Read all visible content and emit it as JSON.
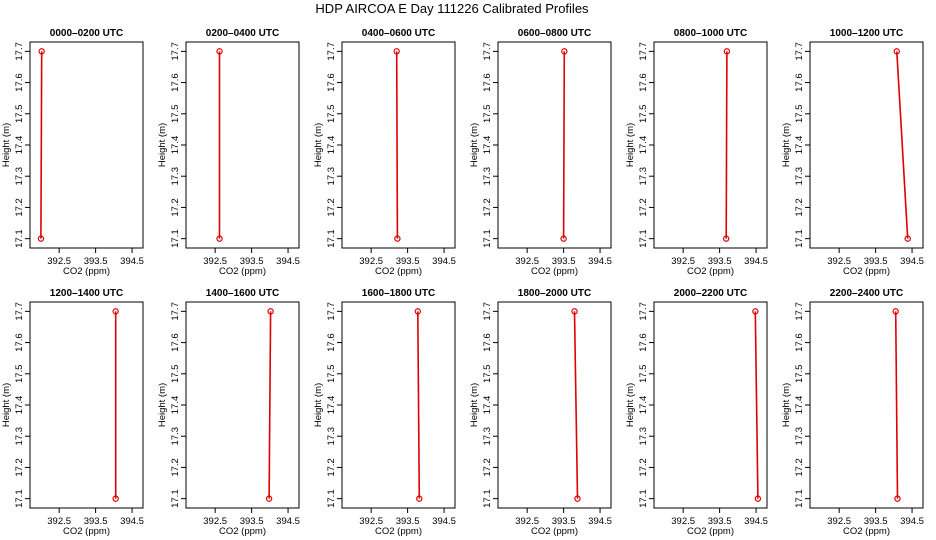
{
  "title": "HDP AIRCOA E  Day 111226  Calibrated Profiles",
  "chart_data": {
    "type": "line",
    "xlabel": "CO2 (ppm)",
    "ylabel": "Height (m)",
    "xlim": [
      391.7,
      394.8
    ],
    "ylim": [
      17.07,
      17.73
    ],
    "xticks": [
      "392.5",
      "393.5",
      "394.5"
    ],
    "xtick_values": [
      392.5,
      393.5,
      394.5
    ],
    "yticks": [
      "17.1",
      "17.2",
      "17.3",
      "17.4",
      "17.5",
      "17.6",
      "17.7"
    ],
    "ytick_values": [
      17.1,
      17.2,
      17.3,
      17.4,
      17.5,
      17.6,
      17.7
    ],
    "line_color": "#e00000",
    "grid": false,
    "panels": [
      {
        "title": "0000–0200 UTC",
        "points": [
          {
            "x": 392.0,
            "y": 17.1
          },
          {
            "x": 392.02,
            "y": 17.7
          }
        ]
      },
      {
        "title": "0200–0400 UTC",
        "points": [
          {
            "x": 392.62,
            "y": 17.1
          },
          {
            "x": 392.62,
            "y": 17.7
          }
        ]
      },
      {
        "title": "0400–0600 UTC",
        "points": [
          {
            "x": 393.22,
            "y": 17.1
          },
          {
            "x": 393.2,
            "y": 17.7
          }
        ]
      },
      {
        "title": "0600–0800 UTC",
        "points": [
          {
            "x": 393.5,
            "y": 17.1
          },
          {
            "x": 393.52,
            "y": 17.7
          }
        ]
      },
      {
        "title": "0800–1000 UTC",
        "points": [
          {
            "x": 393.68,
            "y": 17.1
          },
          {
            "x": 393.7,
            "y": 17.7
          }
        ]
      },
      {
        "title": "1000–1200 UTC",
        "points": [
          {
            "x": 394.38,
            "y": 17.1
          },
          {
            "x": 394.08,
            "y": 17.7
          }
        ]
      },
      {
        "title": "1200–1400 UTC",
        "points": [
          {
            "x": 394.05,
            "y": 17.1
          },
          {
            "x": 394.05,
            "y": 17.7
          }
        ]
      },
      {
        "title": "1400–1600 UTC",
        "points": [
          {
            "x": 393.98,
            "y": 17.1
          },
          {
            "x": 394.02,
            "y": 17.7
          }
        ]
      },
      {
        "title": "1600–1800 UTC",
        "points": [
          {
            "x": 393.82,
            "y": 17.1
          },
          {
            "x": 393.78,
            "y": 17.7
          }
        ]
      },
      {
        "title": "1800–2000 UTC",
        "points": [
          {
            "x": 393.88,
            "y": 17.1
          },
          {
            "x": 393.8,
            "y": 17.7
          }
        ]
      },
      {
        "title": "2000–2200 UTC",
        "points": [
          {
            "x": 394.55,
            "y": 17.1
          },
          {
            "x": 394.48,
            "y": 17.7
          }
        ]
      },
      {
        "title": "2200–2400 UTC",
        "points": [
          {
            "x": 394.1,
            "y": 17.1
          },
          {
            "x": 394.05,
            "y": 17.7
          }
        ]
      }
    ]
  }
}
